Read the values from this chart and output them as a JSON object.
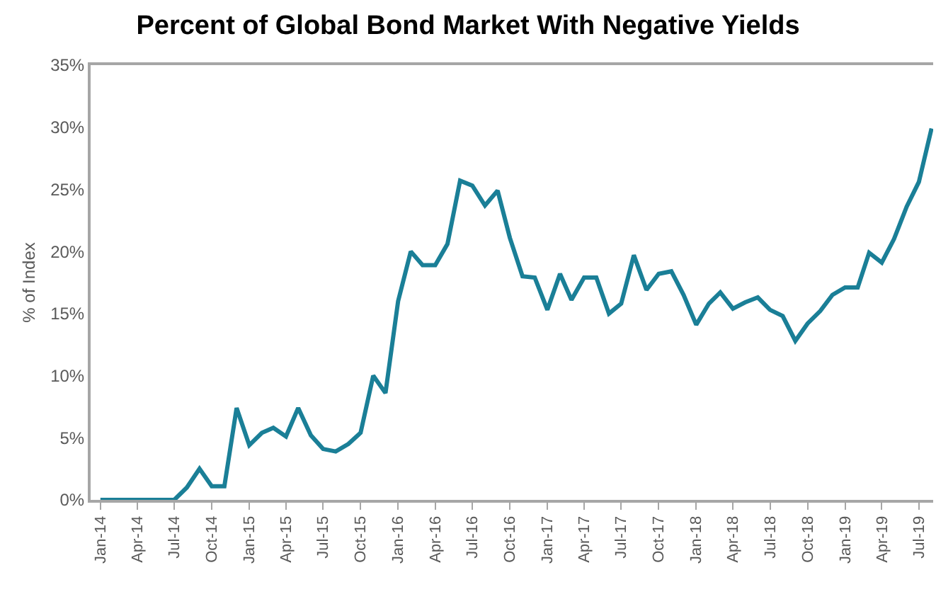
{
  "chart_data": {
    "type": "line",
    "title": "Percent of Global Bond Market With Negative Yields",
    "ylabel": "% of Index",
    "x": [
      "2014-01",
      "2014-02",
      "2014-03",
      "2014-04",
      "2014-05",
      "2014-06",
      "2014-07",
      "2014-08",
      "2014-09",
      "2014-10",
      "2014-11",
      "2014-12",
      "2015-01",
      "2015-02",
      "2015-03",
      "2015-04",
      "2015-05",
      "2015-06",
      "2015-07",
      "2015-08",
      "2015-09",
      "2015-10",
      "2015-11",
      "2015-12",
      "2016-01",
      "2016-02",
      "2016-03",
      "2016-04",
      "2016-05",
      "2016-06",
      "2016-07",
      "2016-08",
      "2016-09",
      "2016-10",
      "2016-11",
      "2016-12",
      "2017-01",
      "2017-02",
      "2017-03",
      "2017-04",
      "2017-05",
      "2017-06",
      "2017-07",
      "2017-08",
      "2017-09",
      "2017-10",
      "2017-11",
      "2017-12",
      "2018-01",
      "2018-02",
      "2018-03",
      "2018-04",
      "2018-05",
      "2018-06",
      "2018-07",
      "2018-08",
      "2018-09",
      "2018-10",
      "2018-11",
      "2018-12",
      "2019-01",
      "2019-02",
      "2019-03",
      "2019-04",
      "2019-05",
      "2019-06",
      "2019-07",
      "2019-08"
    ],
    "series": [
      {
        "color": "#1a7f97",
        "values": [
          0,
          0,
          0,
          0,
          0,
          0,
          0,
          1,
          2.5,
          1.1,
          1.1,
          7.4,
          4.4,
          5.4,
          5.8,
          5.1,
          7.4,
          5.2,
          4.1,
          3.9,
          4.5,
          5.4,
          10,
          8.6,
          16,
          20,
          18.9,
          18.9,
          20.6,
          25.7,
          25.3,
          23.7,
          24.9,
          21.1,
          18,
          17.9,
          15.3,
          18.2,
          16.1,
          17.9,
          17.9,
          15,
          15.8,
          19.7,
          16.9,
          18.2,
          18.4,
          16.5,
          14.1,
          15.8,
          16.7,
          15.4,
          15.9,
          16.3,
          15.3,
          14.8,
          12.8,
          14.2,
          15.2,
          16.5,
          17.1,
          17.1,
          19.9,
          19.1,
          21,
          23.6,
          25.6,
          29.9
        ]
      }
    ],
    "xlim": [
      "2013-12-08",
      "2019-08-05"
    ],
    "xticks": [
      {
        "value": "2014-01",
        "label": "Jan-14"
      },
      {
        "value": "2014-04",
        "label": "Apr-14"
      },
      {
        "value": "2014-07",
        "label": "Jul-14"
      },
      {
        "value": "2014-10",
        "label": "Oct-14"
      },
      {
        "value": "2015-01",
        "label": "Jan-15"
      },
      {
        "value": "2015-04",
        "label": "Apr-15"
      },
      {
        "value": "2015-07",
        "label": "Jul-15"
      },
      {
        "value": "2015-10",
        "label": "Oct-15"
      },
      {
        "value": "2016-01",
        "label": "Jan-16"
      },
      {
        "value": "2016-04",
        "label": "Apr-16"
      },
      {
        "value": "2016-07",
        "label": "Jul-16"
      },
      {
        "value": "2016-10",
        "label": "Oct-16"
      },
      {
        "value": "2017-01",
        "label": "Jan-17"
      },
      {
        "value": "2017-04",
        "label": "Apr-17"
      },
      {
        "value": "2017-07",
        "label": "Jul-17"
      },
      {
        "value": "2017-10",
        "label": "Oct-17"
      },
      {
        "value": "2018-01",
        "label": "Jan-18"
      },
      {
        "value": "2018-04",
        "label": "Apr-18"
      },
      {
        "value": "2018-07",
        "label": "Jul-18"
      },
      {
        "value": "2018-10",
        "label": "Oct-18"
      },
      {
        "value": "2019-01",
        "label": "Jan-19"
      },
      {
        "value": "2019-04",
        "label": "Apr-19"
      },
      {
        "value": "2019-07",
        "label": "Jul-19"
      }
    ],
    "ylim": [
      0,
      35
    ],
    "yticks": [
      {
        "value": 0,
        "label": "0%"
      },
      {
        "value": 5,
        "label": "5%"
      },
      {
        "value": 10,
        "label": "10%"
      },
      {
        "value": 15,
        "label": "15%"
      },
      {
        "value": 20,
        "label": "20%"
      },
      {
        "value": 25,
        "label": "25%"
      },
      {
        "value": 30,
        "label": "30%"
      },
      {
        "value": 35,
        "label": "35%"
      }
    ],
    "grid": false,
    "marker": "none",
    "line_style": "solid"
  }
}
